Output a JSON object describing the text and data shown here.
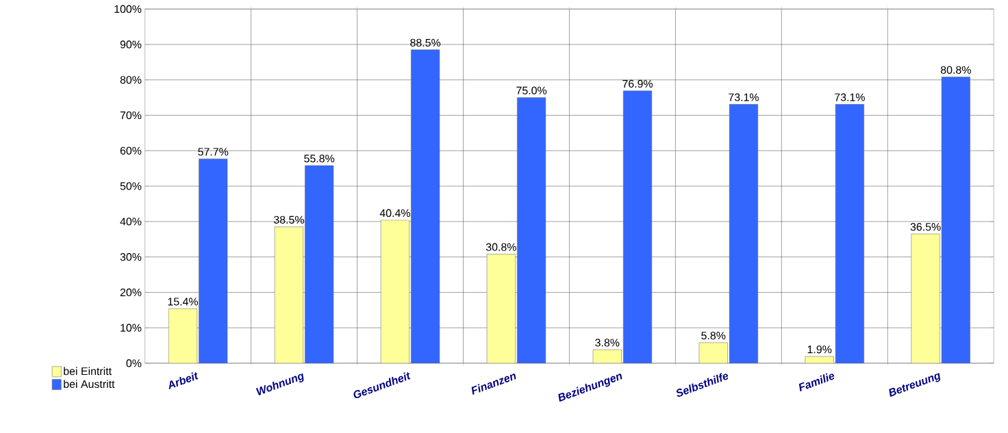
{
  "chart_data": {
    "type": "bar",
    "categories": [
      "Arbeit",
      "Wohnung",
      "Gesundheit",
      "Finanzen",
      "Beziehungen",
      "Selbsthilfe",
      "Familie",
      "Betreuung"
    ],
    "series": [
      {
        "name": "bei Eintritt",
        "color": "#ffff99",
        "values": [
          15.4,
          38.5,
          40.4,
          30.8,
          3.8,
          5.8,
          1.9,
          36.5
        ],
        "value_labels": [
          "15.4%",
          "38.5%",
          "40.4%",
          "30.8%",
          "3.8%",
          "5.8%",
          "1.9%",
          "36.5%"
        ]
      },
      {
        "name": "bei Austritt",
        "color": "#3366ff",
        "values": [
          57.7,
          55.8,
          88.5,
          75.0,
          76.9,
          73.1,
          73.1,
          80.8
        ],
        "value_labels": [
          "57.7%",
          "55.8%",
          "88.5%",
          "75.0%",
          "76.9%",
          "73.1%",
          "73.1%",
          "80.8%"
        ]
      }
    ],
    "ylim": [
      0,
      100
    ],
    "yticks": [
      {
        "value": 0,
        "label": "0%"
      },
      {
        "value": 10,
        "label": "10%"
      },
      {
        "value": 20,
        "label": "20%"
      },
      {
        "value": 30,
        "label": "30%"
      },
      {
        "value": 40,
        "label": "40%"
      },
      {
        "value": 50,
        "label": "50%"
      },
      {
        "value": 60,
        "label": "60%"
      },
      {
        "value": 70,
        "label": "70%"
      },
      {
        "value": 80,
        "label": "80%"
      },
      {
        "value": 90,
        "label": "90%"
      },
      {
        "value": 100,
        "label": "100%"
      }
    ],
    "grid": true,
    "legend": "bottom left"
  }
}
